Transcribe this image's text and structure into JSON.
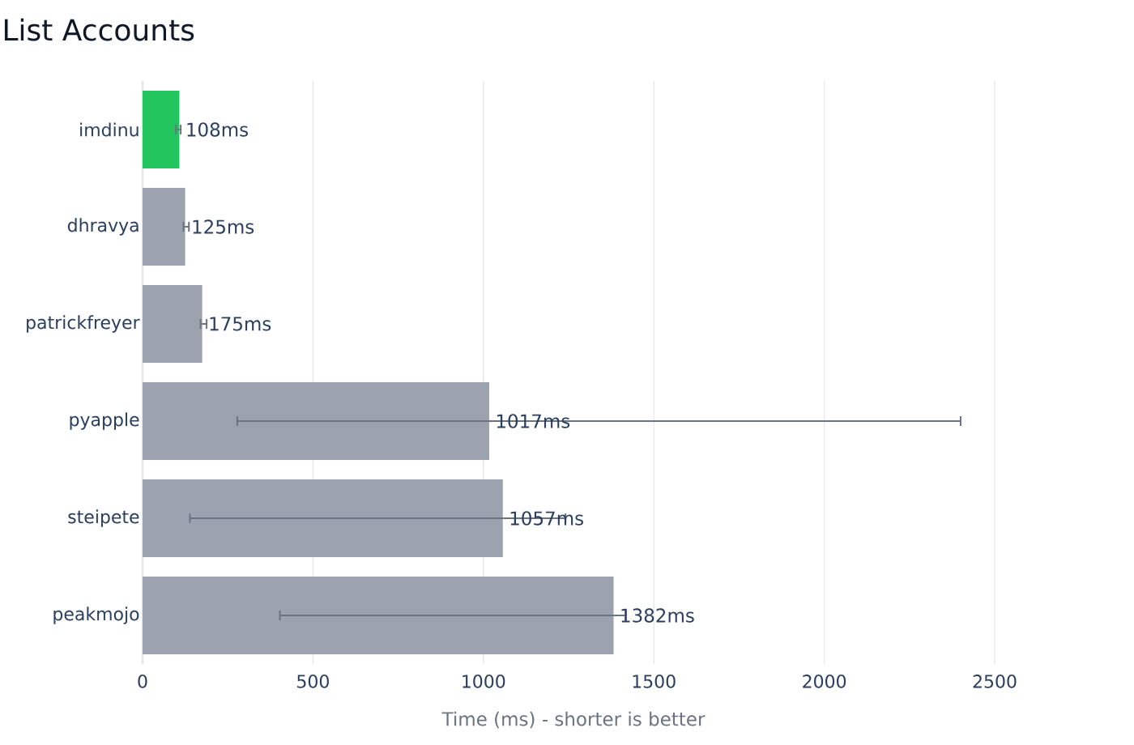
{
  "chart_data": {
    "type": "bar",
    "orientation": "horizontal",
    "title": "List Accounts",
    "xlabel": "Time (ms) - shorter is better",
    "categories": [
      "imdinu",
      "dhravya",
      "patrickfreyer",
      "pyapple",
      "steipete",
      "peakmojo"
    ],
    "values": [
      108,
      125,
      175,
      1017,
      1057,
      1382
    ],
    "colors": [
      "#22c55e",
      "#9ca3af",
      "#9ca3af",
      "#9ca3af",
      "#9ca3af",
      "#9ca3af"
    ],
    "errors": [
      [
        98,
        112
      ],
      [
        120,
        136
      ],
      [
        170,
        188
      ],
      [
        278,
        2400
      ],
      [
        139,
        1241
      ],
      [
        403,
        1417
      ]
    ],
    "value_labels": [
      "108ms",
      "125ms",
      "175ms",
      "1017ms",
      "1057ms",
      "1382ms"
    ],
    "xlim": [
      0,
      2500
    ],
    "xticks": [
      0,
      500,
      1000,
      1500,
      2000,
      2500
    ],
    "grid": "x"
  }
}
